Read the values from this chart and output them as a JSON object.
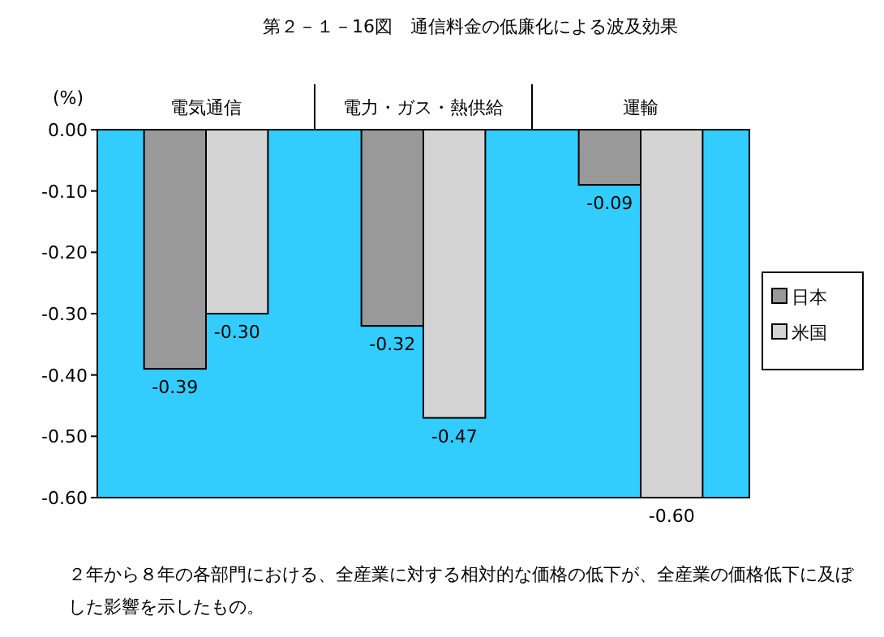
{
  "chart_data": {
    "type": "bar",
    "title": "第２－１－16図　通信料金の低廉化による波及効果",
    "ylabel": "(%)",
    "categories": [
      "電気通信",
      "電力・ガス・熱供給",
      "運輸"
    ],
    "series": [
      {
        "name": "日本",
        "color": "#999999",
        "values": [
          -0.39,
          -0.32,
          -0.09
        ],
        "value_labels": [
          "-0.39",
          "-0.32",
          "-0.09"
        ]
      },
      {
        "name": "米国",
        "color": "#d4d4d4",
        "values": [
          -0.3,
          -0.47,
          -0.6
        ],
        "value_labels": [
          "-0.30",
          "-0.47",
          "-0.60"
        ]
      }
    ],
    "ylim": [
      -0.6,
      0
    ],
    "yticks": [
      {
        "value": 0,
        "label": "0.00"
      },
      {
        "value": -0.1,
        "label": "-0.10"
      },
      {
        "value": -0.2,
        "label": "-0.20"
      },
      {
        "value": -0.3,
        "label": "-0.30"
      },
      {
        "value": -0.4,
        "label": "-0.40"
      },
      {
        "value": -0.5,
        "label": "-0.50"
      },
      {
        "value": -0.6,
        "label": "-0.60"
      }
    ],
    "grid": false,
    "legend": "right",
    "annotations": [
      "２年から８年の各部門における、全産業に対する相対的な価格の低下が、全産業の価格低下に及ぼした影響を示したもの。"
    ]
  }
}
